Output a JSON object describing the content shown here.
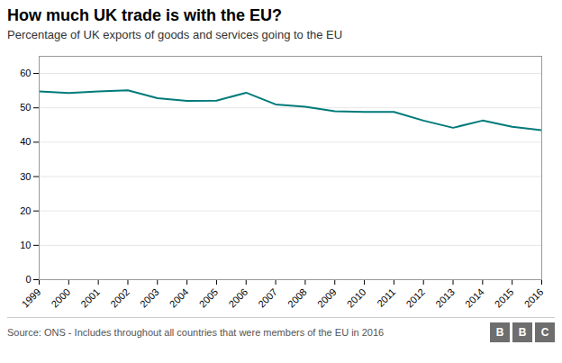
{
  "chart_data": {
    "type": "line",
    "title": "How much UK trade is with the EU?",
    "subtitle": "Percentage of UK exports of goods and services going to the EU",
    "source": "Source: ONS - Includes throughout all countries that were members of the EU in 2016",
    "logo": [
      "B",
      "B",
      "C"
    ],
    "x": [
      1999,
      2000,
      2001,
      2002,
      2003,
      2004,
      2005,
      2006,
      2007,
      2008,
      2009,
      2010,
      2011,
      2012,
      2013,
      2014,
      2015,
      2016
    ],
    "values": [
      54.8,
      54.3,
      54.8,
      55.1,
      52.8,
      52.0,
      52.1,
      54.4,
      51.0,
      50.3,
      49.0,
      48.8,
      48.8,
      46.3,
      44.2,
      46.3,
      44.5,
      43.5
    ],
    "color": "#007a7a",
    "xlim": [
      1999,
      2016
    ],
    "xticks": [
      1999,
      2000,
      2001,
      2002,
      2003,
      2004,
      2005,
      2006,
      2007,
      2008,
      2009,
      2010,
      2011,
      2012,
      2013,
      2014,
      2015,
      2016
    ],
    "ylim": [
      0,
      65
    ],
    "yticks": [
      0,
      10,
      20,
      30,
      40,
      50,
      60
    ],
    "grid": true
  }
}
